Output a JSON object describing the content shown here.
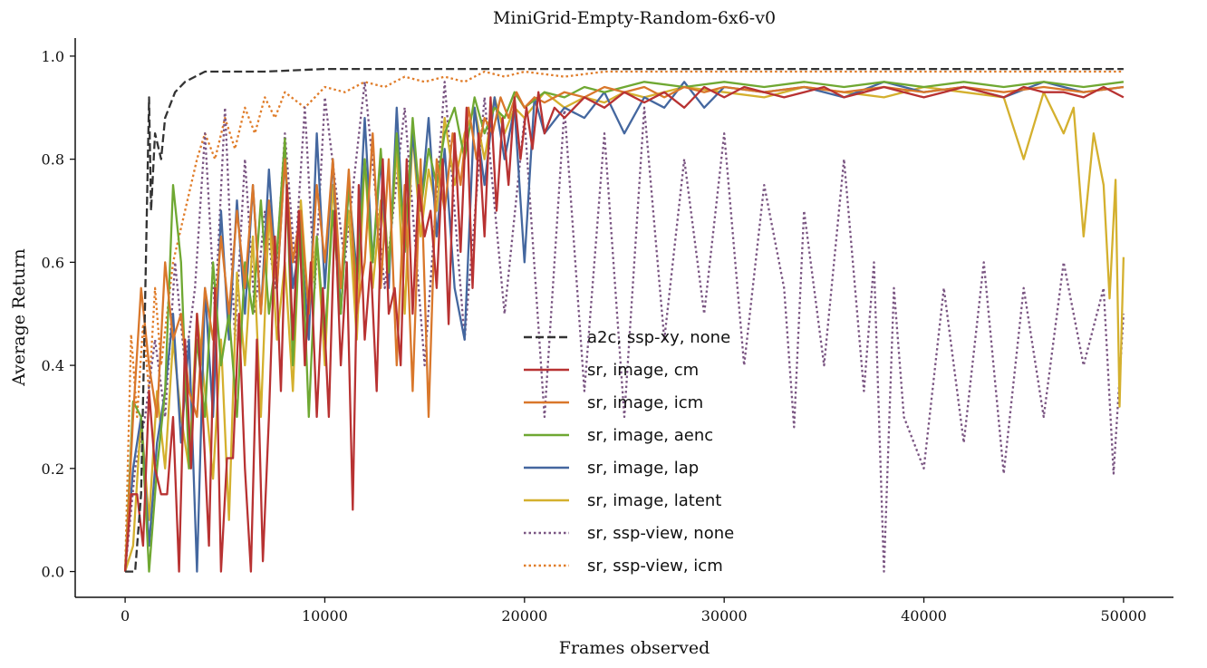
{
  "chart_data": {
    "type": "line",
    "title": "MiniGrid-Empty-Random-6x6-v0",
    "xlabel": "Frames observed",
    "ylabel": "Average Return",
    "xlim": [
      -2500,
      52500
    ],
    "ylim": [
      -0.05,
      1.035
    ],
    "xticks": [
      0,
      10000,
      20000,
      30000,
      40000,
      50000
    ],
    "xtick_labels": [
      "0",
      "10000",
      "20000",
      "30000",
      "40000",
      "50000"
    ],
    "yticks": [
      0.0,
      0.2,
      0.4,
      0.6,
      0.8,
      1.0
    ],
    "ytick_labels": [
      "0.0",
      "0.2",
      "0.4",
      "0.6",
      "0.8",
      "1.0"
    ],
    "grid": false,
    "legend_position": "center",
    "series": [
      {
        "name": "a2c, ssp-xy, none",
        "color": "#333333",
        "dash": "dashed",
        "x": [
          0,
          500,
          800,
          1000,
          1200,
          1300,
          1500,
          1800,
          2000,
          2500,
          3000,
          3500,
          4000,
          5000,
          7000,
          10000,
          15000,
          20000,
          25000,
          30000,
          35000,
          40000,
          45000,
          50000
        ],
        "y": [
          0.0,
          0.0,
          0.15,
          0.52,
          0.92,
          0.7,
          0.85,
          0.8,
          0.88,
          0.93,
          0.95,
          0.96,
          0.97,
          0.97,
          0.97,
          0.975,
          0.975,
          0.975,
          0.975,
          0.975,
          0.975,
          0.975,
          0.975,
          0.975
        ]
      },
      {
        "name": "sr, image, cm",
        "color": "#b83232",
        "dash": "solid",
        "x": [
          0,
          300,
          600,
          900,
          1200,
          1500,
          1800,
          2100,
          2400,
          2700,
          3000,
          3300,
          3600,
          3900,
          4200,
          4500,
          4800,
          5100,
          5400,
          5700,
          6000,
          6300,
          6600,
          6900,
          7200,
          7500,
          7800,
          8100,
          8400,
          8700,
          9000,
          9300,
          9600,
          9900,
          10200,
          10500,
          10800,
          11100,
          11400,
          11700,
          12000,
          12300,
          12600,
          12900,
          13200,
          13500,
          13800,
          14100,
          14400,
          14700,
          15000,
          15300,
          15600,
          15900,
          16200,
          16500,
          16800,
          17100,
          17400,
          17700,
          18000,
          18300,
          18600,
          18900,
          19200,
          19500,
          19800,
          20100,
          20400,
          20700,
          21000,
          21500,
          22000,
          23000,
          24000,
          25000,
          26000,
          27000,
          28000,
          29000,
          30000,
          31000,
          32000,
          33000,
          34000,
          35000,
          36000,
          37000,
          38000,
          39000,
          40000,
          41000,
          42000,
          43000,
          44000,
          45000,
          46000,
          47000,
          48000,
          49000,
          50000
        ],
        "y": [
          0.0,
          0.15,
          0.15,
          0.05,
          0.35,
          0.2,
          0.15,
          0.15,
          0.3,
          0.0,
          0.45,
          0.2,
          0.5,
          0.3,
          0.05,
          0.55,
          0.0,
          0.22,
          0.22,
          0.5,
          0.2,
          0.0,
          0.45,
          0.02,
          0.3,
          0.65,
          0.35,
          0.75,
          0.45,
          0.7,
          0.4,
          0.6,
          0.3,
          0.55,
          0.3,
          0.7,
          0.4,
          0.6,
          0.12,
          0.75,
          0.45,
          0.6,
          0.35,
          0.8,
          0.5,
          0.55,
          0.4,
          0.8,
          0.5,
          0.75,
          0.65,
          0.7,
          0.55,
          0.8,
          0.48,
          0.85,
          0.62,
          0.9,
          0.55,
          0.85,
          0.65,
          0.92,
          0.7,
          0.88,
          0.75,
          0.92,
          0.8,
          0.9,
          0.82,
          0.93,
          0.85,
          0.9,
          0.88,
          0.92,
          0.9,
          0.93,
          0.91,
          0.93,
          0.9,
          0.94,
          0.92,
          0.94,
          0.93,
          0.92,
          0.93,
          0.94,
          0.92,
          0.93,
          0.94,
          0.93,
          0.92,
          0.93,
          0.94,
          0.93,
          0.92,
          0.94,
          0.93,
          0.93,
          0.92,
          0.94,
          0.92
        ]
      },
      {
        "name": "sr, image, icm",
        "color": "#d9772b",
        "dash": "solid",
        "x": [
          0,
          400,
          800,
          1200,
          1600,
          2000,
          2400,
          2800,
          3200,
          3600,
          4000,
          4400,
          4800,
          5200,
          5600,
          6000,
          6400,
          6800,
          7200,
          7600,
          8000,
          8400,
          8800,
          9200,
          9600,
          10000,
          10400,
          10800,
          11200,
          11600,
          12000,
          12400,
          12800,
          13200,
          13600,
          14000,
          14400,
          14800,
          15200,
          15600,
          16000,
          16400,
          16800,
          17200,
          17600,
          18000,
          18400,
          18800,
          19200,
          19600,
          20000,
          20500,
          21000,
          22000,
          23000,
          24000,
          25000,
          26000,
          27000,
          28000,
          29000,
          30000,
          32000,
          34000,
          36000,
          38000,
          40000,
          42000,
          44000,
          46000,
          48000,
          50000
        ],
        "y": [
          0.0,
          0.3,
          0.55,
          0.4,
          0.3,
          0.6,
          0.45,
          0.5,
          0.35,
          0.3,
          0.55,
          0.45,
          0.65,
          0.5,
          0.7,
          0.55,
          0.75,
          0.5,
          0.72,
          0.55,
          0.8,
          0.6,
          0.7,
          0.5,
          0.75,
          0.6,
          0.8,
          0.55,
          0.78,
          0.5,
          0.6,
          0.85,
          0.55,
          0.8,
          0.4,
          0.75,
          0.35,
          0.8,
          0.3,
          0.8,
          0.7,
          0.85,
          0.75,
          0.9,
          0.8,
          0.88,
          0.85,
          0.92,
          0.88,
          0.93,
          0.9,
          0.92,
          0.91,
          0.93,
          0.92,
          0.94,
          0.93,
          0.94,
          0.92,
          0.94,
          0.93,
          0.94,
          0.93,
          0.94,
          0.93,
          0.94,
          0.93,
          0.94,
          0.93,
          0.94,
          0.93,
          0.94
        ]
      },
      {
        "name": "sr, image, aenc",
        "color": "#6fa832",
        "dash": "solid",
        "x": [
          0,
          400,
          800,
          1200,
          1600,
          2000,
          2400,
          2800,
          3200,
          3600,
          4000,
          4400,
          4800,
          5200,
          5600,
          6000,
          6400,
          6800,
          7200,
          7600,
          8000,
          8400,
          8800,
          9200,
          9600,
          10000,
          10400,
          10800,
          11200,
          11600,
          12000,
          12400,
          12800,
          13200,
          13600,
          14000,
          14400,
          14800,
          15200,
          15600,
          16000,
          16500,
          17000,
          17500,
          18000,
          18500,
          19000,
          19500,
          20000,
          21000,
          22000,
          23000,
          24000,
          25000,
          26000,
          28000,
          30000,
          32000,
          34000,
          36000,
          38000,
          40000,
          42000,
          44000,
          46000,
          48000,
          50000
        ],
        "y": [
          0.0,
          0.33,
          0.3,
          0.0,
          0.2,
          0.35,
          0.75,
          0.6,
          0.2,
          0.45,
          0.3,
          0.6,
          0.4,
          0.5,
          0.3,
          0.6,
          0.5,
          0.72,
          0.5,
          0.62,
          0.84,
          0.4,
          0.7,
          0.3,
          0.65,
          0.45,
          0.7,
          0.5,
          0.75,
          0.55,
          0.8,
          0.6,
          0.82,
          0.58,
          0.85,
          0.62,
          0.88,
          0.7,
          0.82,
          0.75,
          0.85,
          0.9,
          0.8,
          0.92,
          0.85,
          0.9,
          0.88,
          0.93,
          0.9,
          0.93,
          0.92,
          0.94,
          0.93,
          0.94,
          0.95,
          0.94,
          0.95,
          0.94,
          0.95,
          0.94,
          0.95,
          0.94,
          0.95,
          0.94,
          0.95,
          0.94,
          0.95
        ]
      },
      {
        "name": "sr, image, lap",
        "color": "#44679f",
        "dash": "solid",
        "x": [
          0,
          400,
          800,
          1200,
          1600,
          2000,
          2400,
          2800,
          3200,
          3600,
          4000,
          4400,
          4800,
          5200,
          5600,
          6000,
          6400,
          6800,
          7200,
          7600,
          8000,
          8400,
          8800,
          9200,
          9600,
          10000,
          10400,
          10800,
          11200,
          11600,
          12000,
          12400,
          12800,
          13200,
          13600,
          14000,
          14400,
          14800,
          15200,
          15600,
          16000,
          16500,
          17000,
          17500,
          18000,
          18500,
          19000,
          19500,
          20000,
          20500,
          21000,
          22000,
          23000,
          24000,
          25000,
          26000,
          27000,
          28000,
          29000,
          30000,
          32000,
          34000,
          36000,
          38000,
          40000,
          42000,
          44000,
          46000,
          48000,
          50000
        ],
        "y": [
          0.0,
          0.2,
          0.3,
          0.05,
          0.25,
          0.35,
          0.5,
          0.25,
          0.45,
          0.0,
          0.55,
          0.3,
          0.7,
          0.45,
          0.72,
          0.5,
          0.75,
          0.5,
          0.78,
          0.55,
          0.8,
          0.55,
          0.65,
          0.45,
          0.85,
          0.55,
          0.8,
          0.5,
          0.75,
          0.58,
          0.88,
          0.6,
          0.8,
          0.55,
          0.9,
          0.62,
          0.85,
          0.7,
          0.88,
          0.65,
          0.82,
          0.55,
          0.45,
          0.9,
          0.75,
          0.92,
          0.8,
          0.9,
          0.6,
          0.92,
          0.85,
          0.9,
          0.88,
          0.93,
          0.85,
          0.92,
          0.9,
          0.95,
          0.9,
          0.94,
          0.93,
          0.94,
          0.92,
          0.95,
          0.93,
          0.94,
          0.92,
          0.95,
          0.93,
          0.94
        ]
      },
      {
        "name": "sr, image, latent",
        "color": "#d4b02e",
        "dash": "solid",
        "x": [
          0,
          400,
          800,
          1200,
          1600,
          2000,
          2400,
          2800,
          3200,
          3600,
          4000,
          4400,
          4800,
          5200,
          5600,
          6000,
          6400,
          6800,
          7200,
          7600,
          8000,
          8400,
          8800,
          9200,
          9600,
          10000,
          10400,
          10800,
          11200,
          11600,
          12000,
          12400,
          12800,
          13200,
          13600,
          14000,
          14400,
          14800,
          15200,
          15600,
          16000,
          16500,
          17000,
          17500,
          18000,
          18500,
          19000,
          19500,
          20000,
          21000,
          22000,
          23000,
          24000,
          25000,
          26000,
          28000,
          30000,
          32000,
          34000,
          36000,
          38000,
          40000,
          42000,
          44000,
          45000,
          46000,
          47000,
          47500,
          48000,
          48500,
          49000,
          49300,
          49600,
          49800,
          50000
        ],
        "y": [
          0.0,
          0.05,
          0.3,
          0.1,
          0.35,
          0.2,
          0.45,
          0.3,
          0.2,
          0.5,
          0.35,
          0.18,
          0.45,
          0.1,
          0.58,
          0.4,
          0.65,
          0.3,
          0.7,
          0.45,
          0.6,
          0.35,
          0.72,
          0.5,
          0.65,
          0.4,
          0.75,
          0.55,
          0.7,
          0.45,
          0.8,
          0.55,
          0.72,
          0.6,
          0.82,
          0.5,
          0.85,
          0.65,
          0.78,
          0.7,
          0.88,
          0.75,
          0.85,
          0.9,
          0.8,
          0.92,
          0.85,
          0.9,
          0.88,
          0.93,
          0.9,
          0.92,
          0.91,
          0.93,
          0.92,
          0.94,
          0.93,
          0.92,
          0.94,
          0.93,
          0.92,
          0.94,
          0.93,
          0.92,
          0.8,
          0.93,
          0.85,
          0.9,
          0.65,
          0.85,
          0.75,
          0.53,
          0.76,
          0.32,
          0.61
        ]
      },
      {
        "name": "sr, ssp-view, none",
        "color": "#7a5582",
        "dash": "dotted",
        "x": [
          0,
          500,
          1000,
          1500,
          2000,
          2500,
          3000,
          3500,
          4000,
          4500,
          5000,
          5500,
          6000,
          6500,
          7000,
          7500,
          8000,
          8500,
          9000,
          9500,
          10000,
          11000,
          12000,
          13000,
          14000,
          15000,
          16000,
          17000,
          18000,
          19000,
          20000,
          21000,
          22000,
          23000,
          24000,
          25000,
          26000,
          27000,
          28000,
          29000,
          30000,
          31000,
          32000,
          33000,
          33500,
          34000,
          35000,
          36000,
          37000,
          37500,
          38000,
          38500,
          39000,
          40000,
          41000,
          42000,
          43000,
          44000,
          45000,
          46000,
          47000,
          48000,
          49000,
          49500,
          50000
        ],
        "y": [
          0.0,
          0.2,
          0.3,
          0.45,
          0.3,
          0.6,
          0.4,
          0.55,
          0.85,
          0.5,
          0.9,
          0.45,
          0.8,
          0.5,
          0.7,
          0.55,
          0.85,
          0.6,
          0.9,
          0.55,
          0.92,
          0.6,
          0.95,
          0.55,
          0.9,
          0.4,
          0.95,
          0.45,
          0.92,
          0.5,
          0.88,
          0.3,
          0.9,
          0.35,
          0.85,
          0.3,
          0.9,
          0.45,
          0.8,
          0.5,
          0.85,
          0.4,
          0.75,
          0.55,
          0.28,
          0.7,
          0.4,
          0.8,
          0.35,
          0.6,
          0.0,
          0.55,
          0.3,
          0.2,
          0.55,
          0.25,
          0.6,
          0.19,
          0.55,
          0.3,
          0.6,
          0.4,
          0.55,
          0.19,
          0.5
        ]
      },
      {
        "name": "sr, ssp-view, icm",
        "color": "#e07d2a",
        "dash": "dotted",
        "x": [
          0,
          300,
          600,
          900,
          1200,
          1500,
          1800,
          2100,
          2400,
          2700,
          3000,
          3300,
          3600,
          4000,
          4500,
          5000,
          5500,
          6000,
          6500,
          7000,
          7500,
          8000,
          9000,
          10000,
          11000,
          12000,
          13000,
          14000,
          15000,
          16000,
          17000,
          18000,
          19000,
          20000,
          22000,
          24000,
          26000,
          28000,
          30000,
          32000,
          34000,
          36000,
          38000,
          40000,
          42000,
          44000,
          46000,
          48000,
          50000
        ],
        "y": [
          0.0,
          0.46,
          0.3,
          0.48,
          0.35,
          0.55,
          0.4,
          0.5,
          0.6,
          0.65,
          0.7,
          0.75,
          0.8,
          0.85,
          0.8,
          0.88,
          0.82,
          0.9,
          0.85,
          0.92,
          0.88,
          0.93,
          0.9,
          0.94,
          0.93,
          0.95,
          0.94,
          0.96,
          0.95,
          0.96,
          0.95,
          0.97,
          0.96,
          0.97,
          0.96,
          0.97,
          0.97,
          0.97,
          0.97,
          0.97,
          0.97,
          0.97,
          0.97,
          0.97,
          0.97,
          0.97,
          0.97,
          0.97,
          0.97
        ]
      }
    ]
  }
}
